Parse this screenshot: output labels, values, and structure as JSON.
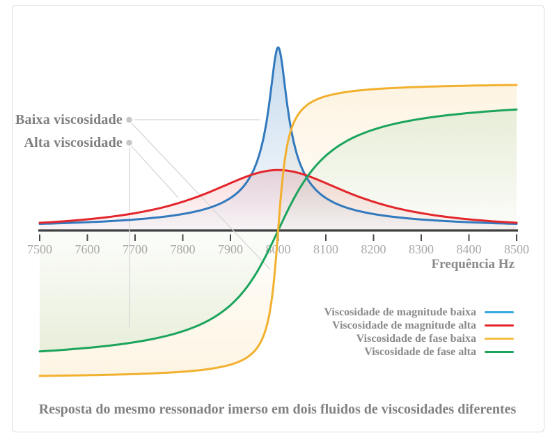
{
  "figure": {
    "caption": "Resposta do mesmo ressonador imerso em dois fluidos de viscosidades diferentes"
  },
  "annotations": {
    "low": {
      "label": "Baixa viscosidade",
      "points_to": [
        "Viscosidade de magnitude baixa",
        "Viscosidade de fase baixa"
      ]
    },
    "high": {
      "label": "Alta viscosidade",
      "points_to": [
        "Viscosidade de magnitude alta",
        "Viscosidade de fase alta"
      ]
    }
  },
  "chart_data": {
    "type": "line",
    "title": "",
    "xlabel": "Frequência Hz",
    "ylabel": "",
    "grid": false,
    "legend_position": "bottom-right",
    "resonance_hz": 8000,
    "y_unit": "normalized (low-viscosity magnitude peak = 1; phase asymptotes ≈ ±0.8 ≈ ±90°)",
    "x_axis": {
      "min": 7500,
      "max": 8500,
      "ticks": [
        7500,
        7600,
        7700,
        7800,
        7900,
        8000,
        8100,
        8200,
        8300,
        8400,
        8500
      ]
    },
    "x_sample_hz": [
      7500,
      7550,
      7600,
      7650,
      7700,
      7750,
      7800,
      7850,
      7900,
      7950,
      8000,
      8050,
      8100,
      8150,
      8200,
      8250,
      8300,
      8350,
      8400,
      8450,
      8500
    ],
    "series": [
      {
        "name": "Viscosidade de magnitude baixa",
        "kind": "magnitude",
        "color": "#3279bd",
        "legend_color": "#33a9e0",
        "fill_alpha": 0.28,
        "center_hz": 8000,
        "width_hz": 18,
        "amplitude": 1.0,
        "exponent": 0.5,
        "values": [
          0.036,
          0.04,
          0.045,
          0.051,
          0.06,
          0.072,
          0.09,
          0.119,
          0.177,
          0.339,
          1.0,
          0.339,
          0.177,
          0.119,
          0.09,
          0.072,
          0.06,
          0.051,
          0.045,
          0.04,
          0.036
        ]
      },
      {
        "name": "Viscosidade de magnitude alta",
        "kind": "magnitude",
        "color": "#e2262b",
        "legend_color": "#e2262b",
        "fill_alpha": 0.16,
        "center_hz": 8000,
        "width_hz": 190,
        "amplitude": 0.33,
        "exponent": 1,
        "values": [
          0.042,
          0.05,
          0.06,
          0.074,
          0.094,
          0.12,
          0.156,
          0.204,
          0.26,
          0.309,
          0.33,
          0.309,
          0.26,
          0.204,
          0.156,
          0.12,
          0.094,
          0.074,
          0.06,
          0.05,
          0.042
        ]
      },
      {
        "name": "Viscosidade de fase baixa",
        "kind": "phase",
        "color": "#f2b02f",
        "legend_color": "#f4bd42",
        "fill_alpha": 0.15,
        "center_hz": 8000,
        "width_hz": 15,
        "amplitude": 0.81,
        "values": [
          -0.794,
          -0.793,
          -0.791,
          -0.788,
          -0.784,
          -0.779,
          -0.771,
          -0.759,
          -0.733,
          -0.66,
          0,
          0.66,
          0.733,
          0.759,
          0.771,
          0.779,
          0.784,
          0.788,
          0.791,
          0.793,
          0.794
        ]
      },
      {
        "name": "Viscosidade de fase alta",
        "kind": "phase",
        "color": "#1ca45c",
        "legend_color": "#1ca45c",
        "fill_alpha": 0.12,
        "center_hz": 8000,
        "width_hz": 85,
        "amplitude": 0.74,
        "values": [
          -0.661,
          -0.652,
          -0.641,
          -0.628,
          -0.61,
          -0.585,
          -0.551,
          -0.497,
          -0.408,
          -0.25,
          0,
          0.25,
          0.408,
          0.497,
          0.551,
          0.585,
          0.61,
          0.628,
          0.641,
          0.652,
          0.661
        ]
      }
    ],
    "colors": {
      "axis": "#414141",
      "tick": "#4a4a4a",
      "tick_label": "#a8a8a6",
      "annotation_text": "#7e7e7e",
      "leader_line": "#d6d6d6",
      "annotation_dot": "#c7c7c7",
      "frame_border": "#dcdcdc",
      "background": "#ffffff"
    }
  }
}
